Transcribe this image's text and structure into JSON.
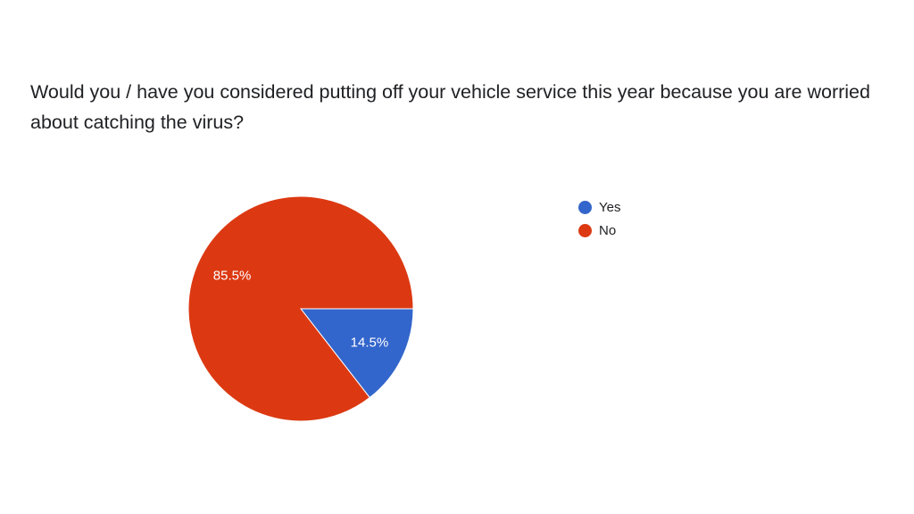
{
  "question": "Would you / have you considered putting off your vehicle service this year because you are worried about catching the virus?",
  "chart_data": {
    "type": "pie",
    "title": "Would you / have you considered putting off your vehicle service this year because you are worried about catching the virus?",
    "categories": [
      "Yes",
      "No"
    ],
    "values": [
      14.5,
      85.5
    ],
    "labels": [
      "14.5%",
      "85.5%"
    ],
    "colors": [
      "#3366cc",
      "#dc3912"
    ],
    "legend": "right"
  }
}
